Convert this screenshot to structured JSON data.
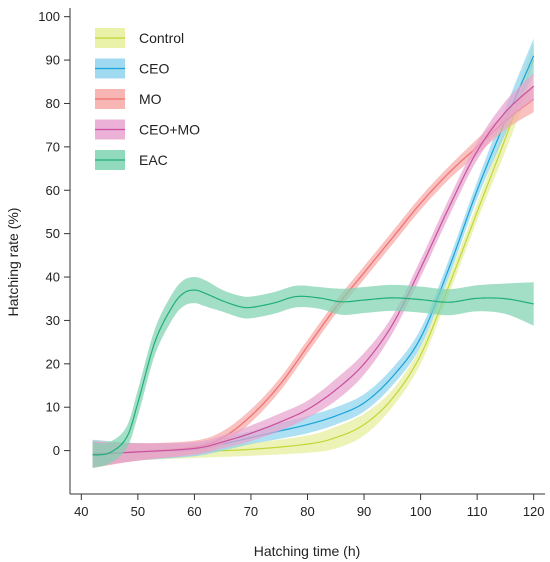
{
  "chart_data": {
    "type": "line",
    "title": "",
    "xlabel": "Hatching time (h)",
    "ylabel": "Hatching rate (%)",
    "xlim": [
      38,
      122
    ],
    "ylim": [
      -10,
      102
    ],
    "xticks": [
      40,
      50,
      60,
      70,
      80,
      90,
      100,
      110,
      120
    ],
    "yticks": [
      0,
      10,
      20,
      30,
      40,
      50,
      60,
      70,
      80,
      90,
      100
    ],
    "grid": false,
    "legend_position": "top-left",
    "series": [
      {
        "name": "Control",
        "color": "#c2d636",
        "band_color": "#e6ef9a",
        "x": [
          42,
          50,
          60,
          70,
          80,
          85,
          90,
          95,
          100,
          105,
          110,
          115,
          120
        ],
        "y": [
          -0.5,
          -0.3,
          -0.2,
          0.3,
          1.5,
          3,
          6,
          12,
          22,
          38,
          55,
          72,
          90
        ],
        "band": [
          3,
          2,
          1.5,
          1.5,
          2,
          2.5,
          2.5,
          2,
          2,
          2,
          2,
          3,
          4
        ]
      },
      {
        "name": "CEO",
        "color": "#1aa3d6",
        "band_color": "#8ed4ef",
        "x": [
          42,
          50,
          60,
          65,
          70,
          75,
          80,
          85,
          90,
          95,
          100,
          105,
          110,
          115,
          120
        ],
        "y": [
          -0.5,
          -0.3,
          0.2,
          1.5,
          3,
          4.5,
          6,
          8,
          11,
          17,
          26,
          42,
          60,
          76,
          91
        ],
        "band": [
          3,
          2,
          1.5,
          1.5,
          1.5,
          1.8,
          2,
          2,
          2,
          2,
          2,
          2,
          2,
          3,
          4
        ]
      },
      {
        "name": "MO",
        "color": "#ee6f6f",
        "band_color": "#f6a9a6",
        "x": [
          42,
          50,
          60,
          65,
          70,
          75,
          80,
          85,
          90,
          95,
          100,
          105,
          110,
          115,
          120
        ],
        "y": [
          -1,
          -0.3,
          0.8,
          3,
          8,
          15,
          24,
          33,
          41,
          49,
          57,
          64,
          70,
          76,
          81
        ],
        "band": [
          3,
          2,
          1.5,
          1.5,
          1.5,
          1.5,
          1.5,
          1.5,
          1.5,
          1.5,
          1.5,
          1.5,
          1.8,
          2,
          3
        ]
      },
      {
        "name": "CEO+MO",
        "color": "#c94f9e",
        "band_color": "#e8a3cf",
        "x": [
          42,
          50,
          60,
          65,
          70,
          75,
          80,
          85,
          90,
          95,
          100,
          105,
          110,
          115,
          120
        ],
        "y": [
          -0.8,
          -0.3,
          0.5,
          2,
          4,
          6.5,
          9.5,
          14,
          20,
          29,
          42,
          56,
          69,
          78,
          84
        ],
        "band": [
          3,
          2,
          1.5,
          1.5,
          1.8,
          2,
          2,
          2.5,
          2.5,
          2,
          2,
          2,
          2,
          2.5,
          3
        ]
      },
      {
        "name": "EAC",
        "color": "#1fae7b",
        "band_color": "#7fd3b1",
        "x": [
          42,
          45,
          48,
          50,
          53,
          56,
          58,
          60,
          62,
          65,
          68,
          70,
          74,
          78,
          82,
          86,
          90,
          95,
          100,
          105,
          110,
          115,
          120
        ],
        "y": [
          -1,
          -0.5,
          3,
          11,
          25,
          33,
          36.2,
          37,
          36.2,
          34.5,
          33.2,
          33,
          34,
          35.5,
          35.2,
          34.3,
          34.7,
          35.2,
          34.8,
          34.2,
          35.1,
          35.0,
          33.8
        ],
        "band": [
          3,
          2.5,
          2.5,
          3,
          3,
          3,
          3,
          3,
          3,
          2.5,
          2.5,
          2.5,
          2.5,
          2.5,
          2.5,
          3,
          3,
          3,
          3,
          3,
          3,
          3.5,
          5
        ]
      }
    ]
  }
}
